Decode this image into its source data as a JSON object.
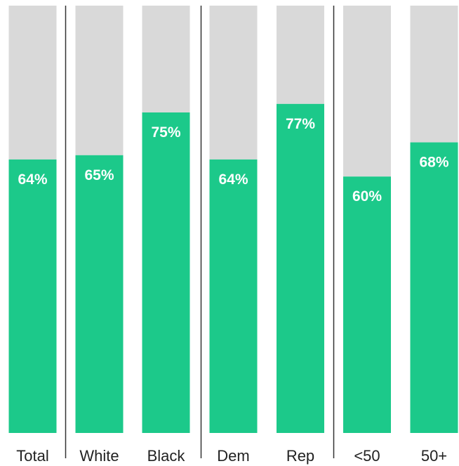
{
  "chart_data": {
    "type": "bar",
    "stacked": "filled-share-vs-remainder",
    "categories": [
      "Total",
      "White",
      "Black",
      "Dem",
      "Rep",
      "<50",
      "50+"
    ],
    "values": [
      64,
      65,
      75,
      64,
      77,
      60,
      68
    ],
    "value_labels": [
      "64%",
      "65%",
      "75%",
      "64%",
      "77%",
      "60%",
      "68%"
    ],
    "ylim": [
      0,
      100
    ],
    "groups": [
      [
        "Total"
      ],
      [
        "White",
        "Black"
      ],
      [
        "Dem",
        "Rep"
      ],
      [
        "<50",
        "50+"
      ]
    ],
    "grid": false,
    "legend": "none",
    "colors": {
      "fill": "#1cc98a",
      "remainder": "#d9d9d9",
      "divider": "#333333",
      "label": "#ffffff",
      "category": "#222222"
    }
  }
}
